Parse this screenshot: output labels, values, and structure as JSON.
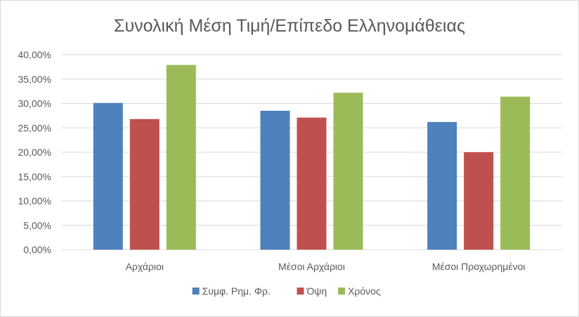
{
  "chart_data": {
    "type": "bar",
    "title": "Συνολική Μέση Τιμή/Επίπεδο Ελληνομάθειας",
    "xlabel": "",
    "ylabel": "",
    "categories": [
      "Αρχάριοι",
      "Μέσοι Αρχάριοι",
      "Μέσοι Προχωρημένοι"
    ],
    "series": [
      {
        "name": "Συμφ. Ρημ. Φρ.",
        "color": "#4f81bd",
        "values": [
          30.1,
          28.5,
          26.2
        ]
      },
      {
        "name": "Όψη",
        "color": "#c0504d",
        "values": [
          26.8,
          27.1,
          20.0
        ]
      },
      {
        "name": "Χρόνος",
        "color": "#9bbb59",
        "values": [
          37.9,
          32.2,
          31.4
        ]
      }
    ],
    "ylim": [
      0,
      40
    ],
    "yticks": [
      "0,00%",
      "5,00%",
      "10,00%",
      "15,00%",
      "20,00%",
      "25,00%",
      "30,00%",
      "35,00%",
      "40,00%"
    ],
    "grid": true,
    "legend_position": "bottom"
  }
}
